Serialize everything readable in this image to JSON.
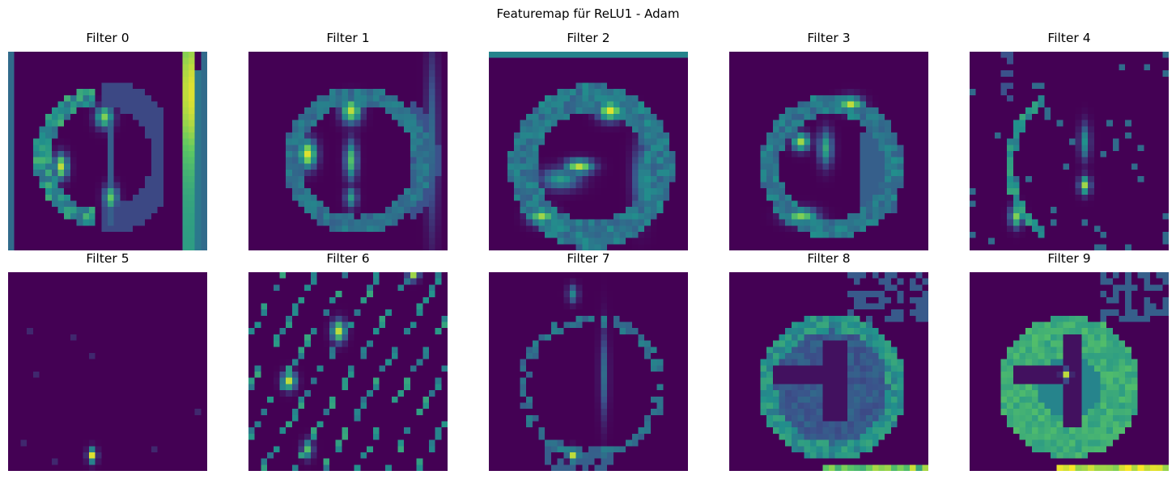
{
  "figure": {
    "title": "Featuremap für ReLU1 - Adam"
  },
  "colormap": "viridis",
  "colors": {
    "background": "#440154",
    "low": "#3b528b",
    "mid": "#21918c",
    "high": "#5ec962",
    "peak": "#fde725"
  },
  "panels": [
    {
      "title": "Filter 0"
    },
    {
      "title": "Filter 1"
    },
    {
      "title": "Filter 2"
    },
    {
      "title": "Filter 3"
    },
    {
      "title": "Filter 4"
    },
    {
      "title": "Filter 5"
    },
    {
      "title": "Filter 6"
    },
    {
      "title": "Filter 7"
    },
    {
      "title": "Filter 8"
    },
    {
      "title": "Filter 9"
    }
  ]
}
